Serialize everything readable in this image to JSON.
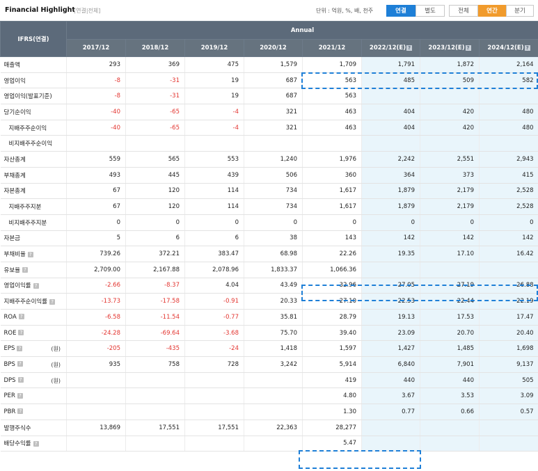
{
  "header": {
    "title": "Financial Highlight",
    "subtitle": "[연결|전체]",
    "unit_text": "단위 : 억원, %, 배, 천주",
    "btn_consolidated": "연결",
    "btn_separate": "별도",
    "btn_all": "전체",
    "btn_annual": "연간",
    "btn_quarter": "분기"
  },
  "table": {
    "corner_label": "IFRS(연결)",
    "group_label": "Annual",
    "columns": [
      "2017/12",
      "2018/12",
      "2019/12",
      "2020/12",
      "2021/12",
      "2022/12(E)",
      "2023/12(E)",
      "2024/12(E)"
    ],
    "rows": [
      {
        "label": "매출액",
        "values": [
          "293",
          "369",
          "475",
          "1,579",
          "1,709",
          "1,791",
          "1,872",
          "2,164"
        ]
      },
      {
        "label": "영업이익",
        "values": [
          "-8",
          "-31",
          "19",
          "687",
          "563",
          "485",
          "509",
          "582"
        ]
      },
      {
        "label": "영업이익(발표기준)",
        "values": [
          "-8",
          "-31",
          "19",
          "687",
          "563",
          "",
          "",
          ""
        ]
      },
      {
        "label": "당기순이익",
        "values": [
          "-40",
          "-65",
          "-4",
          "321",
          "463",
          "404",
          "420",
          "480"
        ]
      },
      {
        "label": "지배주주순이익",
        "values": [
          "-40",
          "-65",
          "-4",
          "321",
          "463",
          "404",
          "420",
          "480"
        ]
      },
      {
        "label": "비지배주주순이익",
        "values": [
          "",
          "",
          "",
          "",
          "",
          "",
          "",
          ""
        ]
      },
      {
        "label": "자산총계",
        "values": [
          "559",
          "565",
          "553",
          "1,240",
          "1,976",
          "2,242",
          "2,551",
          "2,943"
        ]
      },
      {
        "label": "부채총계",
        "values": [
          "493",
          "445",
          "439",
          "506",
          "360",
          "364",
          "373",
          "415"
        ]
      },
      {
        "label": "자본총계",
        "values": [
          "67",
          "120",
          "114",
          "734",
          "1,617",
          "1,879",
          "2,179",
          "2,528"
        ]
      },
      {
        "label": "지배주주지분",
        "values": [
          "67",
          "120",
          "114",
          "734",
          "1,617",
          "1,879",
          "2,179",
          "2,528"
        ]
      },
      {
        "label": "비지배주주지분",
        "values": [
          "0",
          "0",
          "0",
          "0",
          "0",
          "0",
          "0",
          "0"
        ]
      },
      {
        "label": "자본금",
        "values": [
          "5",
          "6",
          "6",
          "38",
          "143",
          "142",
          "142",
          "142"
        ]
      },
      {
        "label": "부채비율",
        "values": [
          "739.26",
          "372.21",
          "383.47",
          "68.98",
          "22.26",
          "19.35",
          "17.10",
          "16.42"
        ]
      },
      {
        "label": "유보율",
        "values": [
          "2,709.00",
          "2,167.88",
          "2,078.96",
          "1,833.37",
          "1,066.36",
          "",
          "",
          ""
        ]
      },
      {
        "label": "영업이익률",
        "values": [
          "-2.66",
          "-8.37",
          "4.04",
          "43.49",
          "32.96",
          "27.05",
          "27.19",
          "26.88"
        ]
      },
      {
        "label": "지배주주순이익률",
        "values": [
          "-13.73",
          "-17.58",
          "-0.91",
          "20.33",
          "27.10",
          "22.53",
          "22.44",
          "22.19"
        ]
      },
      {
        "label": "ROA",
        "values": [
          "-6.58",
          "-11.54",
          "-0.77",
          "35.81",
          "28.79",
          "19.13",
          "17.53",
          "17.47"
        ]
      },
      {
        "label": "ROE",
        "values": [
          "-24.28",
          "-69.64",
          "-3.68",
          "75.70",
          "39.40",
          "23.09",
          "20.70",
          "20.40"
        ]
      },
      {
        "label": "EPS",
        "unit": "(원)",
        "values": [
          "-205",
          "-435",
          "-24",
          "1,418",
          "1,597",
          "1,427",
          "1,485",
          "1,698"
        ]
      },
      {
        "label": "BPS",
        "unit": "(원)",
        "values": [
          "935",
          "758",
          "728",
          "3,242",
          "5,914",
          "6,840",
          "7,901",
          "9,137"
        ]
      },
      {
        "label": "DPS",
        "unit": "(원)",
        "values": [
          "",
          "",
          "",
          "",
          "419",
          "440",
          "440",
          "505"
        ]
      },
      {
        "label": "PER",
        "values": [
          "",
          "",
          "",
          "",
          "4.80",
          "3.67",
          "3.53",
          "3.09"
        ]
      },
      {
        "label": "PBR",
        "values": [
          "",
          "",
          "",
          "",
          "1.30",
          "0.77",
          "0.66",
          "0.57"
        ]
      },
      {
        "label": "발행주식수",
        "values": [
          "13,869",
          "17,551",
          "17,551",
          "22,363",
          "28,277",
          "",
          "",
          ""
        ]
      },
      {
        "label": "배당수익률",
        "values": [
          "",
          "",
          "",
          "",
          "5.47",
          "",
          "",
          ""
        ]
      }
    ]
  }
}
